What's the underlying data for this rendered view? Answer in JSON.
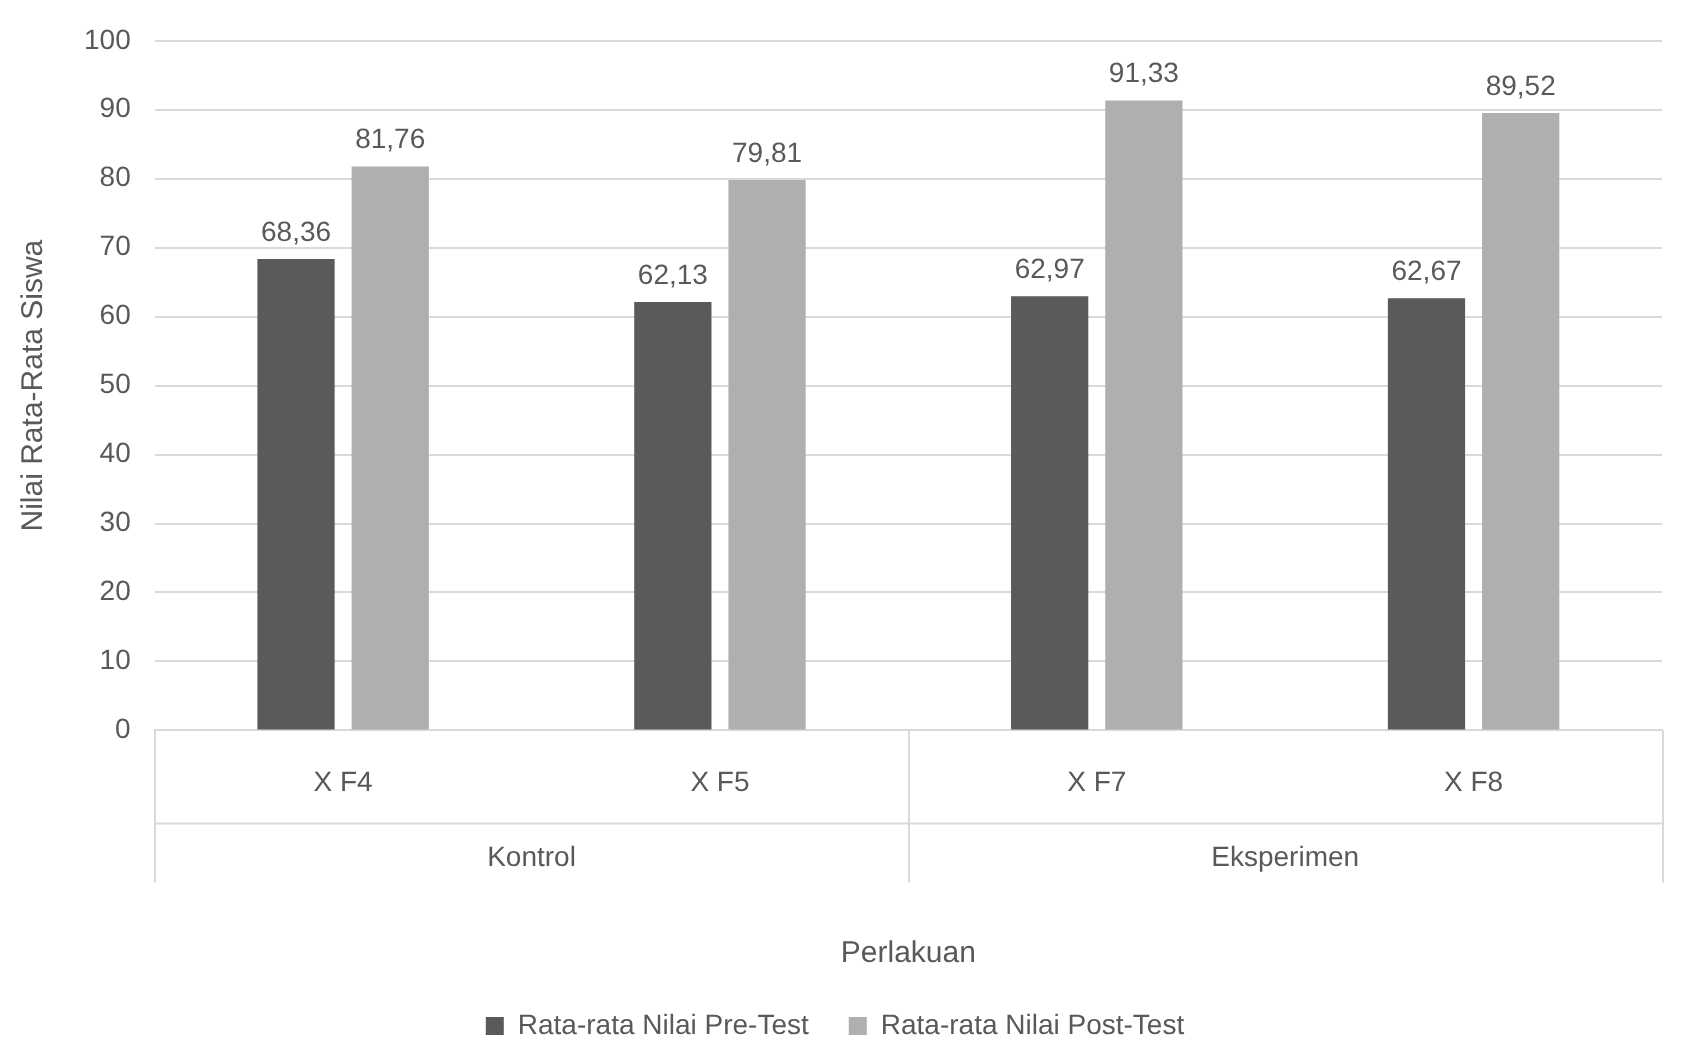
{
  "chart_data": {
    "type": "bar",
    "xlabel": "Perlakuan",
    "ylabel": "Nilai Rata-Rata Siswa",
    "categories": [
      "X F4",
      "X F5",
      "X F7",
      "X F8"
    ],
    "series": [
      {
        "name": "Rata-rata Nilai Pre-Test",
        "color": "#5a5a5a",
        "values": [
          68.36,
          62.13,
          62.97,
          62.67
        ],
        "value_labels": [
          "68,36",
          "62,13",
          "62,97",
          "62,67"
        ]
      },
      {
        "name": "Rata-rata Nilai Post-Test",
        "color": "#afafaf",
        "values": [
          81.76,
          79.81,
          91.33,
          89.52
        ],
        "value_labels": [
          "81,76",
          "79,81",
          "91,33",
          "89,52"
        ]
      }
    ],
    "ylim": [
      0,
      100
    ],
    "yticks": [
      0,
      10,
      20,
      30,
      40,
      50,
      60,
      70,
      80,
      90,
      100
    ],
    "grid": "y",
    "legend": "bottom",
    "annotations": [
      "Kontrol",
      "Eksperimen"
    ]
  }
}
